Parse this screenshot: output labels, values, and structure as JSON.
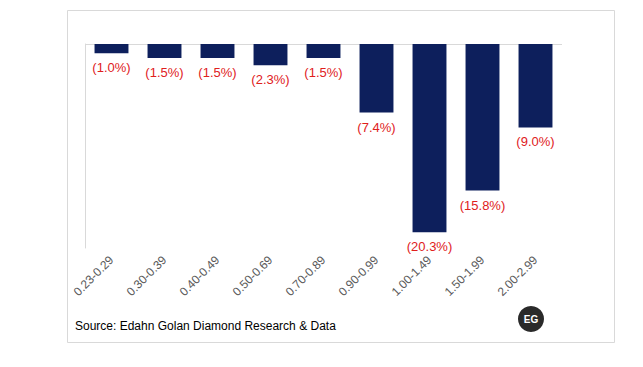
{
  "chart_data": {
    "type": "bar",
    "categories": [
      "0.23-0.29",
      "0.30-0.39",
      "0.40-0.49",
      "0.50-0.69",
      "0.70-0.89",
      "0.90-0.99",
      "1.00-1.49",
      "1.50-1.99",
      "2.00-2.99"
    ],
    "values": [
      -1.0,
      -1.5,
      -1.5,
      -2.3,
      -1.5,
      -7.4,
      -20.3,
      -15.8,
      -9.0
    ],
    "value_labels": [
      "(1.0%)",
      "(1.5%)",
      "(1.5%)",
      "(2.3%)",
      "(1.5%)",
      "(7.4%)",
      "(20.3%)",
      "(15.8%)",
      "(9.0%)"
    ],
    "color": "#0d1f5c",
    "ylim": [
      -22,
      0
    ],
    "yticks": [
      0
    ],
    "grid": true,
    "data_labels": true,
    "tick_labels": "x",
    "annotations": [
      "Source: Edahn Golan Diamond Research & Data",
      "EG"
    ]
  }
}
